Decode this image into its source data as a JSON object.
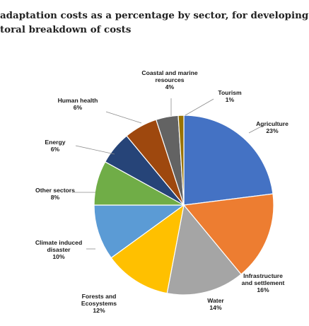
{
  "title_lines": [
    "adaptation costs as a percentage by sector, for developing",
    "toral breakdown of costs"
  ],
  "chart_data": {
    "type": "pie",
    "title": "adaptation costs as a percentage by sector, for developing toral breakdown of costs",
    "start_angle_deg": 0,
    "direction": "clockwise",
    "slices": [
      {
        "label": [
          "Agriculture"
        ],
        "value_label": "23%",
        "value": 23,
        "color": "#4472c4"
      },
      {
        "label": [
          "Infrastructure",
          "and settlement"
        ],
        "value_label": "16%",
        "value": 16,
        "color": "#ed7d31"
      },
      {
        "label": [
          "Water"
        ],
        "value_label": "14%",
        "value": 14,
        "color": "#a5a5a5"
      },
      {
        "label": [
          "Forests and",
          "Ecosystems"
        ],
        "value_label": "12%",
        "value": 12,
        "color": "#ffc000"
      },
      {
        "label": [
          "Climate induced",
          "disaster"
        ],
        "value_label": "10%",
        "value": 10,
        "color": "#5b9bd5"
      },
      {
        "label": [
          "Other sectors"
        ],
        "value_label": "8%",
        "value": 8,
        "color": "#70ad47"
      },
      {
        "label": [
          "Energy"
        ],
        "value_label": "6%",
        "value": 6,
        "color": "#264478"
      },
      {
        "label": [
          "Human health"
        ],
        "value_label": "6%",
        "value": 6,
        "color": "#9e480e"
      },
      {
        "label": [
          "Coastal and marine",
          "resources"
        ],
        "value_label": "4%",
        "value": 4,
        "color": "#636363"
      },
      {
        "label": [
          "Tourism"
        ],
        "value_label": "1%",
        "value": 1,
        "color": "#997300"
      }
    ]
  }
}
